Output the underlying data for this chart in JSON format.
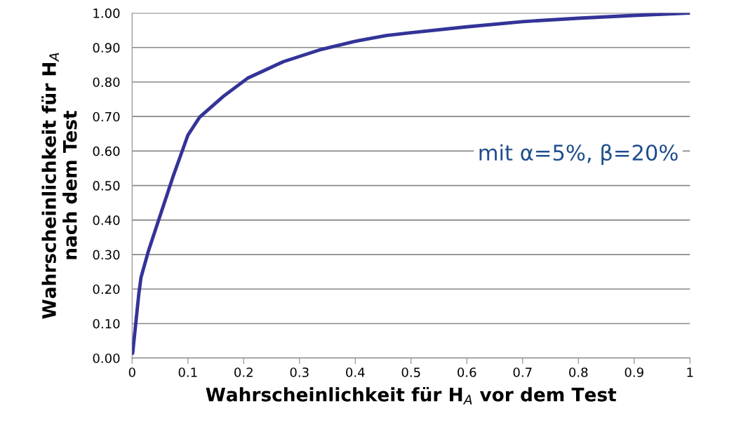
{
  "chart_data": {
    "type": "line",
    "xlabel": "Wahrscheinlichkeit für H$_{A}$ vor dem Test",
    "ylabel": "Wahrscheinlichkeit für H$_{A}$\nnach dem Test",
    "x": [
      0.001,
      0.012,
      0.016,
      0.029,
      0.05,
      0.074,
      0.1,
      0.121,
      0.164,
      0.207,
      0.271,
      0.336,
      0.4,
      0.456,
      0.5,
      0.6,
      0.7,
      0.8,
      0.9,
      1.0
    ],
    "series": [
      {
        "color": "#333399",
        "values": [
          0.014,
          0.186,
          0.234,
          0.309,
          0.412,
          0.529,
          0.646,
          0.698,
          0.759,
          0.811,
          0.859,
          0.893,
          0.918,
          0.935,
          0.943,
          0.96,
          0.975,
          0.985,
          0.993,
          1.0
        ]
      }
    ],
    "xlim": [
      0,
      1
    ],
    "ylim": [
      0,
      1
    ],
    "xticks": [
      0,
      0.1,
      0.2,
      0.3,
      0.4,
      0.5,
      0.6,
      0.7,
      0.8,
      0.9,
      1
    ],
    "yticks": [
      {
        "value": 0,
        "label": "0.00"
      },
      {
        "value": 0.1,
        "label": "0.10"
      },
      {
        "value": 0.2,
        "label": "0.20"
      },
      {
        "value": 0.3,
        "label": "0.30"
      },
      {
        "value": 0.4,
        "label": "0.40"
      },
      {
        "value": 0.5,
        "label": "0.50"
      },
      {
        "value": 0.6,
        "label": "0.60"
      },
      {
        "value": 0.7,
        "label": "0.70"
      },
      {
        "value": 0.8,
        "label": "0.80"
      },
      {
        "value": 0.9,
        "label": "0.90"
      },
      {
        "value": 1.0,
        "label": "1.00"
      }
    ],
    "grid": "y",
    "marker": "none",
    "line_style": "solid",
    "annotations": [
      "mit α=5%, β=20%"
    ]
  }
}
